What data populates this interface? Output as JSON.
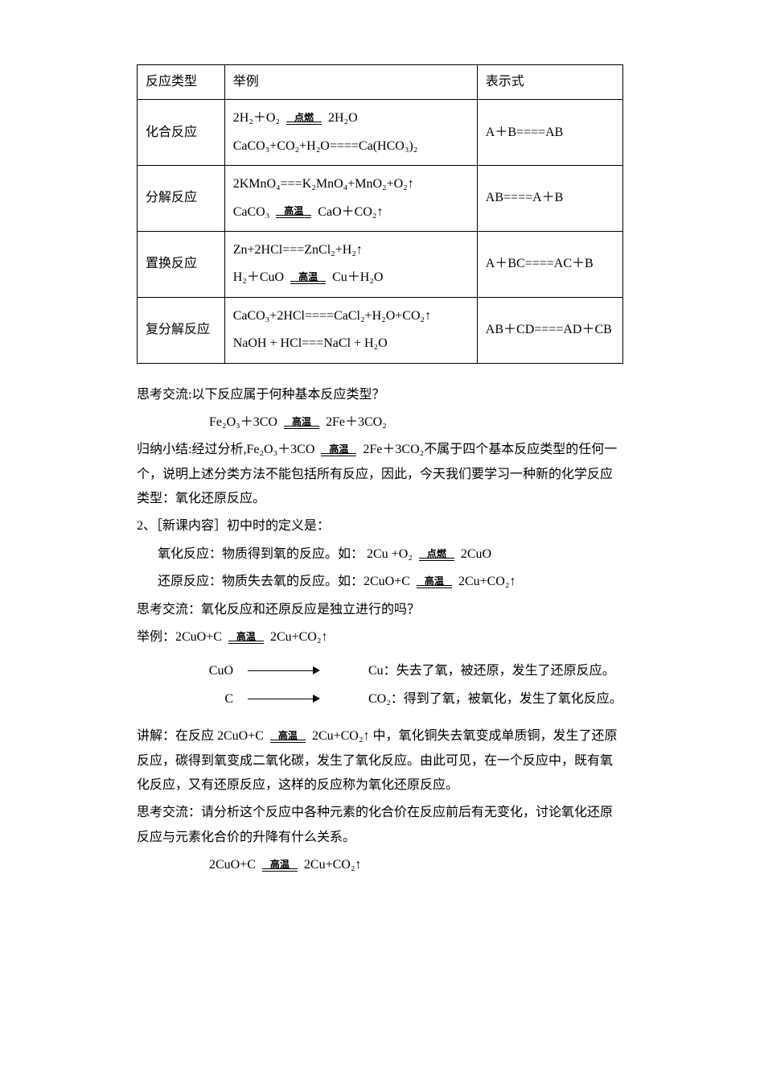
{
  "table": {
    "headers": {
      "type": "反应类型",
      "example": "举例",
      "formula": "表示式"
    },
    "rows": [
      {
        "type": "化合反应",
        "ex1_left": "2H₂＋O₂",
        "ex1_cond": "点燃",
        "ex1_right": "2H₂O",
        "ex2": "CaCO₃+CO₂+H₂O====Ca(HCO₃)₂",
        "formula": "A＋B====AB"
      },
      {
        "type": "分解反应",
        "ex1": "2KMnO₄===K₂MnO₄+MnO₂+O₂↑",
        "ex2_left": "CaCO₃",
        "ex2_cond": "高温",
        "ex2_right": "CaO＋CO₂↑",
        "formula": "AB====A＋B"
      },
      {
        "type": "置换反应",
        "ex1": "Zn+2HCl===ZnCl₂+H₂↑",
        "ex2_left": "H₂＋CuO",
        "ex2_cond": "高温",
        "ex2_right": "Cu＋H₂O",
        "formula": "A＋BC====AC＋B"
      },
      {
        "type": "复分解反应",
        "ex1": "CaCO₃+2HCl====CaCl₂+H₂O+CO₂↑",
        "ex2": "NaOH + HCl===NaCl + H₂O",
        "formula": "AB＋CD====AD＋CB"
      }
    ]
  },
  "p1": "思考交流:以下反应属于何种基本反应类型？",
  "eq1_left": "Fe₂O₃＋3CO",
  "eq1_cond": "高温",
  "eq1_right": "2Fe＋3CO₂",
  "p2_a": "归纳小结:经过分析,Fe₂O₃＋3CO",
  "p2_cond": "高温",
  "p2_b": "2Fe＋3CO₂不属于四个基本反应类型的任何一个，说明上述分类方法不能包括所有反应，因此，今天我们要学习一种新的化学反应类型：氧化还原反应。",
  "p3": "2、［新课内容］初中时的定义是：",
  "p4_a": "氧化反应：物质得到氧的反应。如： 2Cu +O₂",
  "p4_cond": "点燃",
  "p4_b": "2CuO",
  "p5_a": "还原反应：物质失去氧的反应。如：2CuO+C",
  "p5_cond": "高温",
  "p5_b": "2Cu+CO₂↑",
  "p6": "思考交流：氧化反应和还原反应是独立进行的吗？",
  "p7_a": "举例：2CuO+C",
  "p7_cond": "高温",
  "p7_b": "2Cu+CO₂↑",
  "arrow": {
    "r1_left": "CuO",
    "r1_right": "Cu：失去了氧，被还原，发生了还原反应。",
    "r2_left": "C",
    "r2_right": "CO₂：得到了氧，被氧化，发生了氧化反应。"
  },
  "p8_a": "讲解：在反应 2CuO+C",
  "p8_cond": "高温",
  "p8_b": "2Cu+CO₂↑ 中，氧化铜失去氧变成单质铜，发生了还原反应，碳得到氧变成二氧化碳，发生了氧化反应。由此可见，在一个反应中，既有氧化反应，又有还原反应，这样的反应称为氧化还原反应。",
  "p9": "思考交流：请分析这个反应中各种元素的化合价在反应前后有无变化，讨论氧化还原反应与元素化合价的升降有什么关系。",
  "eq2_left": "2CuO+C",
  "eq2_cond": "高温",
  "eq2_right": "2Cu+CO₂↑"
}
